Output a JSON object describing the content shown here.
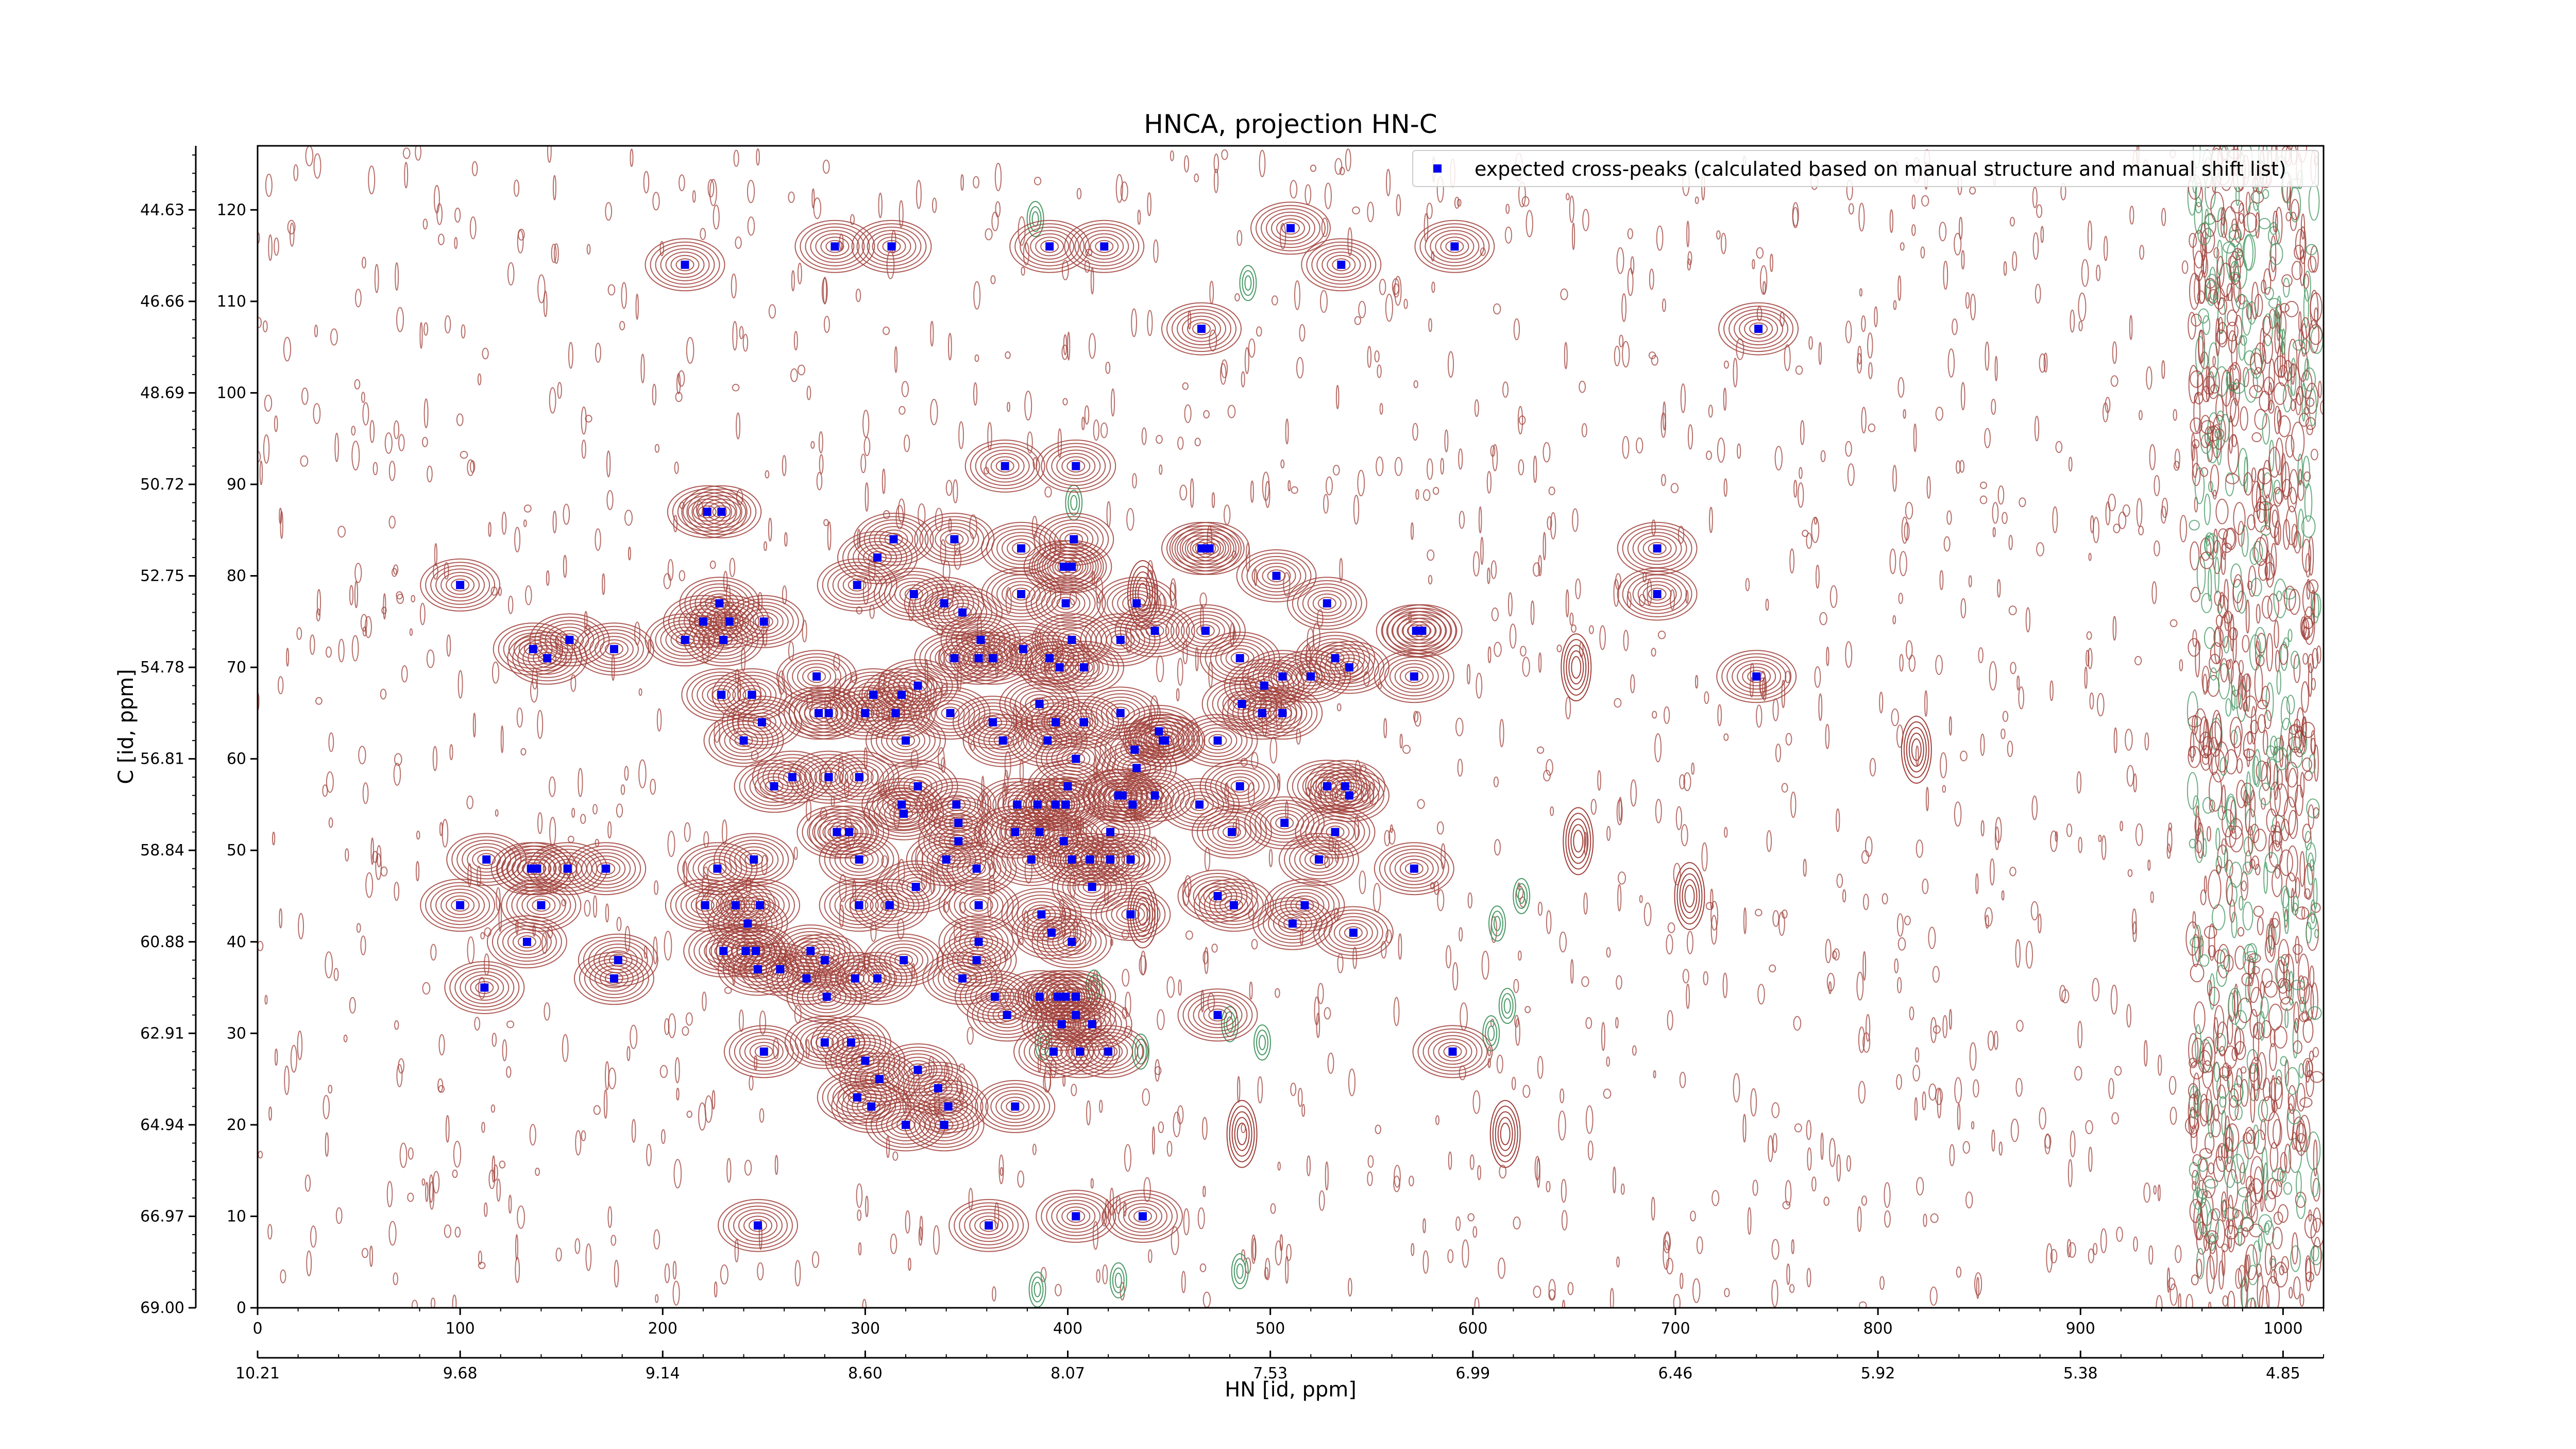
{
  "chart_data": {
    "type": "scatter",
    "title": "HNCA, projection HN-C",
    "xlabel": "HN [id, ppm]",
    "ylabel": "C [id, ppm]",
    "xlim": [
      0,
      1020
    ],
    "ylim": [
      0,
      127
    ],
    "x_ticks": [
      0,
      100,
      200,
      300,
      400,
      500,
      600,
      700,
      800,
      900,
      1000
    ],
    "y_ticks": [
      0,
      10,
      20,
      30,
      40,
      50,
      60,
      70,
      80,
      90,
      100,
      110,
      120
    ],
    "ppm_x_ticks": [
      {
        "pos": 0,
        "label": "10.21"
      },
      {
        "pos": 100,
        "label": "9.68"
      },
      {
        "pos": 200,
        "label": "9.14"
      },
      {
        "pos": 300,
        "label": "8.60"
      },
      {
        "pos": 400,
        "label": "8.07"
      },
      {
        "pos": 500,
        "label": "7.53"
      },
      {
        "pos": 600,
        "label": "6.99"
      },
      {
        "pos": 700,
        "label": "6.46"
      },
      {
        "pos": 800,
        "label": "5.92"
      },
      {
        "pos": 900,
        "label": "5.38"
      },
      {
        "pos": 1000,
        "label": "4.85"
      }
    ],
    "ppm_y_ticks": [
      {
        "pos": 0,
        "label": "69.00"
      },
      {
        "pos": 10,
        "label": "66.97"
      },
      {
        "pos": 20,
        "label": "64.94"
      },
      {
        "pos": 30,
        "label": "62.91"
      },
      {
        "pos": 40,
        "label": "60.88"
      },
      {
        "pos": 50,
        "label": "58.84"
      },
      {
        "pos": 60,
        "label": "56.81"
      },
      {
        "pos": 70,
        "label": "54.78"
      },
      {
        "pos": 80,
        "label": "52.75"
      },
      {
        "pos": 90,
        "label": "50.72"
      },
      {
        "pos": 100,
        "label": "48.69"
      },
      {
        "pos": 110,
        "label": "46.66"
      },
      {
        "pos": 120,
        "label": "44.63"
      }
    ],
    "legend": {
      "position": "top-right",
      "label": "expected cross-peaks (calculated based on manual structure and manual shift list)"
    },
    "colors": {
      "contour_positive": "#a0403a",
      "contour_negative": "#4a9a66",
      "peak": "#0000ee"
    },
    "grid": false,
    "series": [
      {
        "name": "expected cross-peaks (calculated based on manual structure and manual shift list)",
        "points": [
          [
            211,
            114
          ],
          [
            285,
            116
          ],
          [
            313,
            116
          ],
          [
            391,
            116
          ],
          [
            418,
            116
          ],
          [
            510,
            118
          ],
          [
            535,
            114
          ],
          [
            591,
            116
          ],
          [
            466,
            107
          ],
          [
            741,
            107
          ],
          [
            369,
            92
          ],
          [
            404,
            92
          ],
          [
            222,
            87
          ],
          [
            229,
            87
          ],
          [
            100,
            79
          ],
          [
            296,
            79
          ],
          [
            306,
            82
          ],
          [
            314,
            84
          ],
          [
            344,
            84
          ],
          [
            377,
            83
          ],
          [
            403,
            84
          ],
          [
            402,
            81
          ],
          [
            398,
            81
          ],
          [
            466,
            83
          ],
          [
            470,
            83
          ],
          [
            503,
            80
          ],
          [
            691,
            83
          ],
          [
            691,
            78
          ],
          [
            324,
            78
          ],
          [
            339,
            77
          ],
          [
            348,
            76
          ],
          [
            377,
            78
          ],
          [
            399,
            77
          ],
          [
            434,
            77
          ],
          [
            528,
            77
          ],
          [
            136,
            72
          ],
          [
            143,
            71
          ],
          [
            154,
            73
          ],
          [
            176,
            72
          ],
          [
            211,
            73
          ],
          [
            220,
            75
          ],
          [
            228,
            77
          ],
          [
            233,
            75
          ],
          [
            230,
            73
          ],
          [
            250,
            75
          ],
          [
            357,
            73
          ],
          [
            402,
            73
          ],
          [
            426,
            73
          ],
          [
            443,
            74
          ],
          [
            468,
            74
          ],
          [
            572,
            74
          ],
          [
            575,
            74
          ],
          [
            344,
            71
          ],
          [
            356,
            71
          ],
          [
            363,
            71
          ],
          [
            378,
            72
          ],
          [
            391,
            71
          ],
          [
            396,
            70
          ],
          [
            408,
            70
          ],
          [
            485,
            71
          ],
          [
            532,
            71
          ],
          [
            539,
            70
          ],
          [
            276,
            69
          ],
          [
            304,
            67
          ],
          [
            318,
            67
          ],
          [
            326,
            68
          ],
          [
            506,
            69
          ],
          [
            520,
            69
          ],
          [
            571,
            69
          ],
          [
            740,
            69
          ],
          [
            497,
            68
          ],
          [
            229,
            67
          ],
          [
            244,
            67
          ],
          [
            277,
            65
          ],
          [
            282,
            65
          ],
          [
            300,
            65
          ],
          [
            315,
            65
          ],
          [
            342,
            65
          ],
          [
            363,
            64
          ],
          [
            386,
            66
          ],
          [
            394,
            64
          ],
          [
            408,
            64
          ],
          [
            426,
            65
          ],
          [
            445,
            63
          ],
          [
            448,
            62
          ],
          [
            447,
            62
          ],
          [
            486,
            66
          ],
          [
            496,
            65
          ],
          [
            506,
            65
          ],
          [
            249,
            64
          ],
          [
            240,
            62
          ],
          [
            320,
            62
          ],
          [
            368,
            62
          ],
          [
            390,
            62
          ],
          [
            404,
            60
          ],
          [
            433,
            61
          ],
          [
            434,
            59
          ],
          [
            474,
            62
          ],
          [
            255,
            57
          ],
          [
            264,
            58
          ],
          [
            282,
            58
          ],
          [
            297,
            58
          ],
          [
            326,
            57
          ],
          [
            400,
            57
          ],
          [
            318,
            55
          ],
          [
            345,
            55
          ],
          [
            375,
            55
          ],
          [
            385,
            55
          ],
          [
            394,
            55
          ],
          [
            399,
            55
          ],
          [
            425,
            56
          ],
          [
            427,
            56
          ],
          [
            432,
            55
          ],
          [
            443,
            56
          ],
          [
            465,
            55
          ],
          [
            485,
            57
          ],
          [
            528,
            57
          ],
          [
            537,
            57
          ],
          [
            539,
            56
          ],
          [
            286,
            52
          ],
          [
            292,
            52
          ],
          [
            319,
            54
          ],
          [
            346,
            53
          ],
          [
            346,
            51
          ],
          [
            374,
            52
          ],
          [
            386,
            52
          ],
          [
            398,
            51
          ],
          [
            421,
            52
          ],
          [
            481,
            52
          ],
          [
            507,
            53
          ],
          [
            532,
            52
          ],
          [
            113,
            49
          ],
          [
            135,
            48
          ],
          [
            138,
            48
          ],
          [
            153,
            48
          ],
          [
            172,
            48
          ],
          [
            227,
            48
          ],
          [
            245,
            49
          ],
          [
            297,
            49
          ],
          [
            340,
            49
          ],
          [
            355,
            48
          ],
          [
            382,
            49
          ],
          [
            402,
            49
          ],
          [
            411,
            49
          ],
          [
            421,
            49
          ],
          [
            431,
            49
          ],
          [
            571,
            48
          ],
          [
            100,
            44
          ],
          [
            140,
            44
          ],
          [
            221,
            44
          ],
          [
            236,
            44
          ],
          [
            248,
            44
          ],
          [
            297,
            44
          ],
          [
            312,
            44
          ],
          [
            356,
            44
          ],
          [
            387,
            43
          ],
          [
            431,
            43
          ],
          [
            482,
            44
          ],
          [
            517,
            44
          ],
          [
            474,
            45
          ],
          [
            412,
            46
          ],
          [
            524,
            49
          ],
          [
            325,
            46
          ],
          [
            356,
            40
          ],
          [
            392,
            41
          ],
          [
            402,
            40
          ],
          [
            511,
            42
          ],
          [
            541,
            41
          ],
          [
            242,
            42
          ],
          [
            133,
            40
          ],
          [
            178,
            38
          ],
          [
            230,
            39
          ],
          [
            241,
            39
          ],
          [
            246,
            39
          ],
          [
            273,
            39
          ],
          [
            280,
            38
          ],
          [
            258,
            37
          ],
          [
            247,
            37
          ],
          [
            271,
            36
          ],
          [
            281,
            34
          ],
          [
            295,
            36
          ],
          [
            306,
            36
          ],
          [
            319,
            38
          ],
          [
            348,
            36
          ],
          [
            364,
            34
          ],
          [
            370,
            32
          ],
          [
            386,
            34
          ],
          [
            395,
            34
          ],
          [
            399,
            34
          ],
          [
            404,
            34
          ],
          [
            404,
            32
          ],
          [
            412,
            31
          ],
          [
            112,
            35
          ],
          [
            176,
            36
          ],
          [
            355,
            38
          ],
          [
            397,
            31
          ],
          [
            250,
            28
          ],
          [
            280,
            29
          ],
          [
            293,
            29
          ],
          [
            300,
            27
          ],
          [
            393,
            28
          ],
          [
            406,
            28
          ],
          [
            420,
            28
          ],
          [
            326,
            26
          ],
          [
            336,
            24
          ],
          [
            307,
            25
          ],
          [
            296,
            23
          ],
          [
            341,
            22
          ],
          [
            374,
            22
          ],
          [
            303,
            22
          ],
          [
            320,
            20
          ],
          [
            339,
            20
          ],
          [
            474,
            32
          ],
          [
            590,
            28
          ],
          [
            247,
            9
          ],
          [
            361,
            9
          ],
          [
            404,
            10
          ],
          [
            437,
            10
          ]
        ]
      }
    ]
  }
}
